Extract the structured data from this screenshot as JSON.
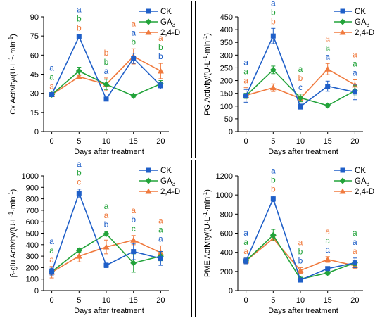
{
  "figure": {
    "colors": {
      "CK": "#1f5fc8",
      "GA3": "#22a33a",
      "24D": "#f07a3e"
    },
    "legend_labels": {
      "CK": "CK",
      "GA3_base": "GA",
      "GA3_sub": "3",
      "24D": "2,4-D"
    }
  },
  "chart_data": [
    {
      "type": "line",
      "ylabel_main": "Cx Activity/(U·L",
      "ylabel_sup1": "-1",
      "ylabel_mid": "·min",
      "ylabel_sup2": "-1",
      "ylabel_end": ")",
      "xlabel": "Days after treatment",
      "ylim": [
        0,
        90
      ],
      "yticks": [
        0,
        15,
        30,
        45,
        60,
        75,
        90
      ],
      "ytick_labels": [
        "0",
        "15",
        "30",
        "45",
        "60",
        "75",
        "90"
      ],
      "x": [
        0,
        5,
        10,
        15,
        20
      ],
      "xtick_labels": [
        "0",
        "5",
        "10",
        "15",
        "20"
      ],
      "series": [
        {
          "key": "CK",
          "values": [
            29,
            74.5,
            25.5,
            57.5,
            36
          ],
          "errors": [
            1,
            1.5,
            1,
            4,
            2.5
          ]
        },
        {
          "key": "GA3",
          "values": [
            29,
            47.5,
            37,
            28,
            37.5
          ],
          "errors": [
            1,
            3,
            4,
            1,
            2.5
          ]
        },
        {
          "key": "24D",
          "values": [
            29,
            43,
            37,
            59,
            47.5
          ],
          "errors": [
            1,
            1,
            5,
            6,
            6
          ]
        }
      ],
      "letters": [
        {
          "x": 0,
          "CK": "a",
          "GA3": "a",
          "24D": "a"
        },
        {
          "x": 5,
          "CK": "a",
          "GA3": "b",
          "24D": "b"
        },
        {
          "x": 10,
          "CK": "a",
          "GA3": "b",
          "24D": "b"
        },
        {
          "x": 15,
          "CK": "a",
          "GA3": "b",
          "24D": "a"
        },
        {
          "x": 20,
          "CK": "b",
          "GA3": "b",
          "24D": "a"
        }
      ],
      "letter_order": [
        [
          "CK",
          "GA3",
          "24D"
        ],
        [
          "CK",
          "GA3",
          "24D"
        ],
        [
          "24D",
          "GA3",
          "CK"
        ],
        [
          "24D",
          "CK",
          "GA3"
        ],
        [
          "24D",
          "GA3",
          "CK"
        ]
      ]
    },
    {
      "type": "line",
      "ylabel_main": "PG Activity/(U·L",
      "ylabel_sup1": "-1",
      "ylabel_mid": "·min",
      "ylabel_sup2": "-1",
      "ylabel_end": ")",
      "xlabel": "Days after treatment",
      "ylim": [
        0,
        450
      ],
      "yticks": [
        0,
        50,
        100,
        150,
        200,
        250,
        300,
        350,
        400,
        450
      ],
      "ytick_labels": [
        "0",
        "50",
        "100",
        "150",
        "200",
        "250",
        "300",
        "350",
        "400",
        "450"
      ],
      "x": [
        0,
        5,
        10,
        15,
        20
      ],
      "xtick_labels": [
        "0",
        "5",
        "10",
        "15",
        "20"
      ],
      "series": [
        {
          "key": "CK",
          "values": [
            140,
            375,
            98,
            178,
            155
          ],
          "errors": [
            25,
            30,
            10,
            20,
            30
          ]
        },
        {
          "key": "GA3",
          "values": [
            140,
            242,
            132,
            102,
            160
          ],
          "errors": [
            10,
            15,
            15,
            5,
            20
          ]
        },
        {
          "key": "24D",
          "values": [
            142,
            172,
            130,
            245,
            183
          ],
          "errors": [
            30,
            15,
            10,
            22,
            20
          ]
        }
      ],
      "letters": [
        {
          "x": 0,
          "CK": "a",
          "GA3": "a",
          "24D": "a"
        },
        {
          "x": 5,
          "CK": "a",
          "GA3": "b",
          "24D": "b"
        },
        {
          "x": 10,
          "CK": "c",
          "GA3": "a",
          "24D": "b"
        },
        {
          "x": 15,
          "CK": "a",
          "GA3": "a",
          "24D": "a"
        },
        {
          "x": 20,
          "CK": "a",
          "GA3": "a",
          "24D": "a"
        }
      ],
      "letter_order": [
        [
          "CK",
          "GA3",
          "24D"
        ],
        [
          "CK",
          "GA3",
          "24D"
        ],
        [
          "GA3",
          "24D",
          "CK"
        ],
        [
          "24D",
          "GA3",
          "CK"
        ],
        [
          "24D",
          "GA3",
          "CK"
        ]
      ]
    },
    {
      "type": "line",
      "ylabel_main": "β-glu Activity/(U·L",
      "ylabel_sup1": "-1",
      "ylabel_mid": "·min",
      "ylabel_sup2": "-1",
      "ylabel_end": ")",
      "xlabel": "Days after treatment",
      "ylim": [
        0,
        1000
      ],
      "yticks": [
        0,
        100,
        200,
        300,
        400,
        500,
        600,
        700,
        800,
        900,
        1000
      ],
      "ytick_labels": [
        "0",
        "100",
        "200",
        "300",
        "400",
        "500",
        "600",
        "700",
        "800",
        "900",
        "1000"
      ],
      "x": [
        0,
        5,
        10,
        15,
        20
      ],
      "xtick_labels": [
        "0",
        "5",
        "10",
        "15",
        "20"
      ],
      "series": [
        {
          "key": "CK",
          "values": [
            165,
            850,
            220,
            340,
            280
          ],
          "errors": [
            30,
            35,
            20,
            70,
            60
          ]
        },
        {
          "key": "GA3",
          "values": [
            165,
            350,
            495,
            240,
            300
          ],
          "errors": [
            20,
            15,
            20,
            80,
            40
          ]
        },
        {
          "key": "24D",
          "values": [
            160,
            300,
            380,
            440,
            330
          ],
          "errors": [
            50,
            50,
            60,
            40,
            60
          ]
        }
      ],
      "letters": [
        {
          "x": 0,
          "CK": "a",
          "GA3": "a",
          "24D": "a"
        },
        {
          "x": 5,
          "CK": "a",
          "GA3": "b",
          "24D": "c"
        },
        {
          "x": 10,
          "CK": "b",
          "GA3": "a",
          "24D": "a"
        },
        {
          "x": 15,
          "CK": "b",
          "GA3": "c",
          "24D": "a"
        },
        {
          "x": 20,
          "CK": "a",
          "GA3": "a",
          "24D": "a"
        }
      ],
      "letter_order": [
        [
          "CK",
          "GA3",
          "24D"
        ],
        [
          "CK",
          "GA3",
          "24D"
        ],
        [
          "GA3",
          "24D",
          "CK"
        ],
        [
          "24D",
          "CK",
          "GA3"
        ],
        [
          "24D",
          "GA3",
          "CK"
        ]
      ]
    },
    {
      "type": "line",
      "ylabel_main": "PME Activity/(U·L",
      "ylabel_sup1": "-1",
      "ylabel_mid": "·min",
      "ylabel_sup2": "-1",
      "ylabel_end": ")",
      "xlabel": "Days after treatment",
      "ylim": [
        0,
        1200
      ],
      "yticks": [
        0,
        200,
        400,
        600,
        800,
        1000,
        1200
      ],
      "ytick_labels": [
        "0",
        "200",
        "400",
        "600",
        "800",
        "1000",
        "1200"
      ],
      "x": [
        0,
        5,
        10,
        15,
        20
      ],
      "xtick_labels": [
        "0",
        "5",
        "10",
        "15",
        "20"
      ],
      "series": [
        {
          "key": "CK",
          "values": [
            310,
            960,
            110,
            230,
            290
          ],
          "errors": [
            30,
            30,
            15,
            20,
            50
          ]
        },
        {
          "key": "GA3",
          "values": [
            310,
            580,
            120,
            185,
            290
          ],
          "errors": [
            20,
            60,
            20,
            20,
            30
          ]
        },
        {
          "key": "24D",
          "values": [
            310,
            545,
            210,
            325,
            260
          ],
          "errors": [
            30,
            20,
            30,
            30,
            30
          ]
        }
      ],
      "letters": [
        {
          "x": 0,
          "CK": "a",
          "GA3": "a",
          "24D": "a"
        },
        {
          "x": 5,
          "CK": "a",
          "GA3": "b",
          "24D": "b"
        },
        {
          "x": 10,
          "CK": "b",
          "GA3": "b",
          "24D": "a"
        },
        {
          "x": 15,
          "CK": "a",
          "GA3": "a",
          "24D": "a"
        },
        {
          "x": 20,
          "CK": "a",
          "GA3": "a",
          "24D": "a"
        }
      ],
      "letter_order": [
        [
          "CK",
          "GA3",
          "24D"
        ],
        [
          "CK",
          "GA3",
          "24D"
        ],
        [
          "24D",
          "GA3",
          "CK"
        ],
        [
          "24D",
          "GA3",
          "CK"
        ],
        [
          "GA3",
          "CK",
          "24D"
        ]
      ]
    }
  ]
}
